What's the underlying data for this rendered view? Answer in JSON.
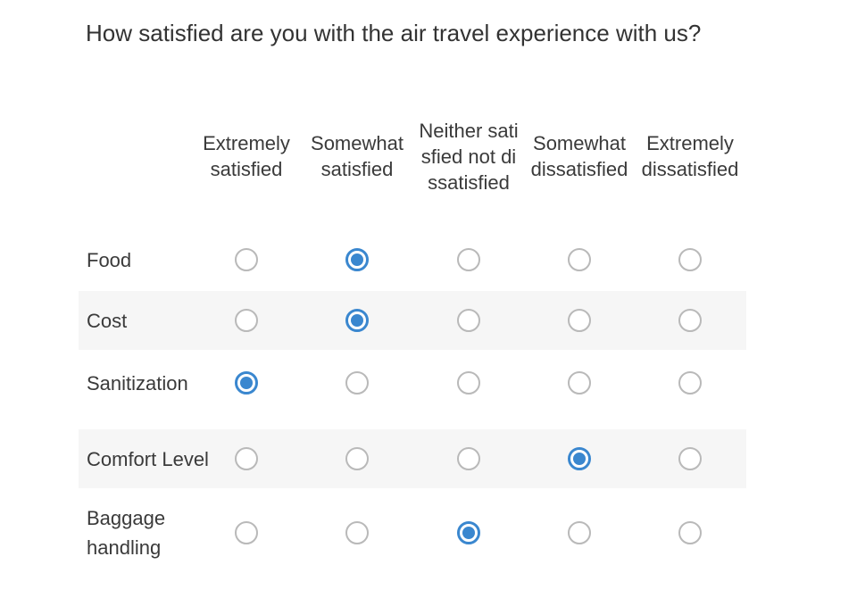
{
  "survey": {
    "question": "How satisfied are you with the air travel experience with us?",
    "columns": [
      "Extremely satisfied",
      "Somewhat satisfied",
      "Neither satisfied not dissatisfied",
      "Somewhat dissatisfied",
      "Extremely dissatisfied"
    ],
    "rows": [
      {
        "label": "Food",
        "selected": 1
      },
      {
        "label": "Cost",
        "selected": 1
      },
      {
        "label": "Sanitization",
        "selected": 0
      },
      {
        "label": "Comfort Level",
        "selected": 3
      },
      {
        "label": "Baggage handling",
        "selected": 2
      }
    ]
  },
  "colors": {
    "accent": "#3a87cf",
    "radio_border": "#b9b9b9",
    "alt_row_bg": "#f6f6f6"
  }
}
